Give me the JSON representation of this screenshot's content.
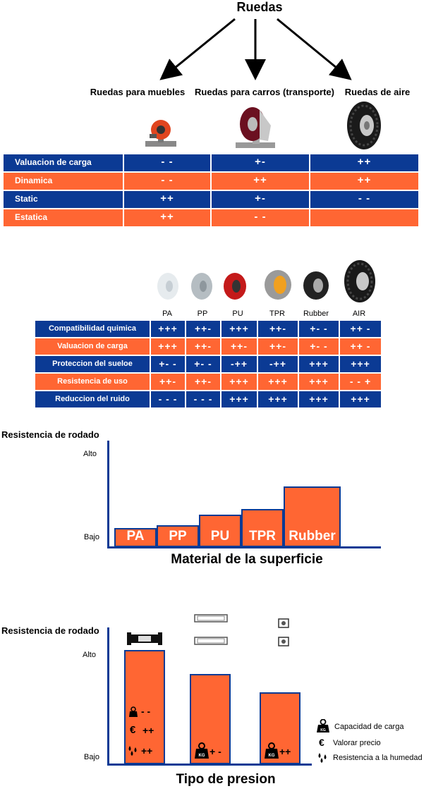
{
  "diagram": {
    "root": "Ruedas",
    "categories": [
      "Ruedas para muebles",
      "Ruedas para carros (transporte)",
      "Ruedas de aire"
    ]
  },
  "table1": {
    "rows": [
      {
        "label": "Valuacion de carga",
        "values": [
          "- -",
          "+-",
          "++"
        ],
        "color": "blue"
      },
      {
        "label": "Dinamica",
        "values": [
          "- -",
          "++",
          "++"
        ],
        "color": "orange"
      },
      {
        "label": "Static",
        "values": [
          "++",
          "+-",
          "- -"
        ],
        "color": "blue"
      },
      {
        "label": "Estatica",
        "values": [
          "++",
          "- -",
          ""
        ],
        "color": "orange"
      }
    ]
  },
  "table2": {
    "wheels": [
      "PA",
      "PP",
      "PU",
      "TPR",
      "Rubber",
      "AIR"
    ],
    "rows": [
      {
        "label": "Compatibilidad quimica",
        "values": [
          "+++",
          "++-",
          "+++",
          "++-",
          "+- -",
          "++ -"
        ],
        "color": "blue"
      },
      {
        "label": "Valuacion de carga",
        "values": [
          "+++",
          "++-",
          "++-",
          "++-",
          "+- -",
          "++ -"
        ],
        "color": "orange"
      },
      {
        "label": "Proteccion del sueloe",
        "values": [
          "+- -",
          "+- -",
          "-++",
          "-++",
          "+++",
          "+++"
        ],
        "color": "blue"
      },
      {
        "label": "Resistencia de uso",
        "values": [
          "++-",
          "++-",
          "+++",
          "+++",
          "+++",
          "- - +"
        ],
        "color": "orange"
      },
      {
        "label": "Reduccion del ruido",
        "values": [
          "- - -",
          "- - -",
          "+++",
          "+++",
          "+++",
          "+++"
        ],
        "color": "blue"
      }
    ]
  },
  "chart1": {
    "title": "Resistencia de rodado",
    "y_high": "Alto",
    "y_low": "Bajo",
    "xlabel": "Material de la superficie",
    "bars": [
      "PA",
      "PP",
      "PU",
      "TPR",
      "Rubber"
    ]
  },
  "chart2": {
    "title": "Resistencia de rodado",
    "y_high": "Alto",
    "y_low": "Bajo",
    "xlabel": "Tipo de presion",
    "bar1": {
      "load": "- -",
      "price": "++",
      "humidity": "++"
    },
    "bar2": {
      "load": "+ -"
    },
    "bar3": {
      "load": "++"
    },
    "kg": "KG",
    "legend": {
      "load": "Capacidad de carga",
      "price": "Valorar precio",
      "humidity": "Resistencia a la humedad",
      "euro": "€"
    }
  },
  "colors": {
    "blue": "#0b3a94",
    "orange": "#ff6633"
  }
}
